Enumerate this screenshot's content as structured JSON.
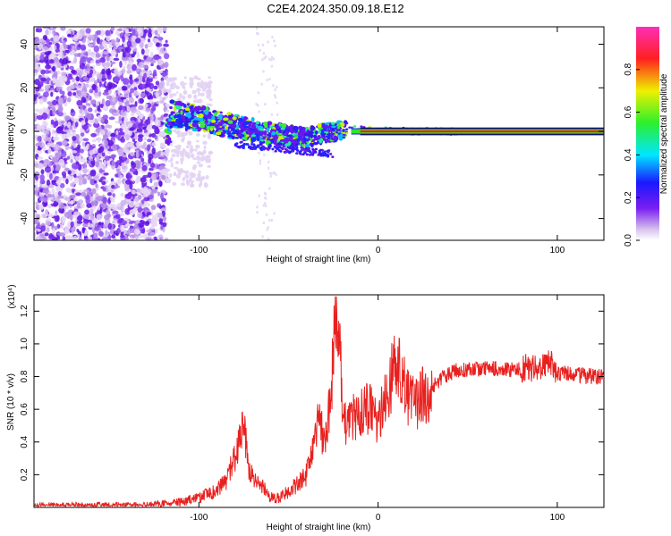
{
  "page": {
    "title": "C2E4.2024.350.09.18.E12"
  },
  "chart_data": [
    {
      "type": "heatmap",
      "title": "",
      "xlabel": "Height of straight line (km)",
      "ylabel": "Frequency (Hz)",
      "xlim": [
        -192,
        126
      ],
      "ylim": [
        -50,
        48
      ],
      "x_ticks": [
        -100,
        0,
        100
      ],
      "y_ticks": [
        -40,
        -20,
        0,
        20,
        40
      ],
      "grid": false,
      "colorbar": {
        "label": "Normalized spectral amplitude",
        "range": [
          0,
          1
        ],
        "ticks": [
          "0.0",
          "0.2",
          "0.4",
          "0.6",
          "0.8"
        ]
      },
      "features": {
        "noise_region_x": [
          -192,
          -118
        ],
        "ridge": [
          {
            "x": -116,
            "y": 8
          },
          {
            "x": -100,
            "y": 6
          },
          {
            "x": -80,
            "y": 2
          },
          {
            "x": -60,
            "y": -1
          },
          {
            "x": -40,
            "y": -3
          },
          {
            "x": -25,
            "y": 0
          },
          {
            "x": -10,
            "y": 1
          },
          {
            "x": 0,
            "y": 0.5
          },
          {
            "x": 20,
            "y": 0
          },
          {
            "x": 126,
            "y": 0
          }
        ]
      }
    },
    {
      "type": "line",
      "title": "",
      "xlabel": "Height of straight line (km)",
      "ylabel": "SNR (10 * v/v)",
      "y_multiplier": "(x10⁴)",
      "xlim": [
        -192,
        126
      ],
      "ylim": [
        0,
        1.3
      ],
      "x_ticks": [
        -100,
        0,
        100
      ],
      "y_ticks": [
        "0.2",
        "0.4",
        "0.6",
        "0.8",
        "1.0",
        "1.2"
      ],
      "grid": false,
      "series": [
        {
          "color": "#e8201e",
          "x": [
            -192,
            -170,
            -150,
            -130,
            -110,
            -100,
            -90,
            -85,
            -80,
            -77,
            -75,
            -72,
            -68,
            -64,
            -60,
            -55,
            -50,
            -45,
            -40,
            -36,
            -33,
            -30,
            -27,
            -24,
            -22,
            -20,
            -18,
            -16,
            -14,
            -12,
            -10,
            -8,
            -5,
            -2,
            0,
            5,
            10,
            15,
            20,
            25,
            30,
            35,
            40,
            45,
            50,
            60,
            70,
            80,
            85,
            90,
            95,
            100,
            110,
            120,
            126
          ],
          "y": [
            0.01,
            0.01,
            0.01,
            0.01,
            0.03,
            0.06,
            0.1,
            0.16,
            0.3,
            0.42,
            0.5,
            0.22,
            0.15,
            0.12,
            0.06,
            0.06,
            0.1,
            0.14,
            0.2,
            0.35,
            0.55,
            0.4,
            0.6,
            1.1,
            1.28,
            0.55,
            0.5,
            0.52,
            0.55,
            0.52,
            0.58,
            0.6,
            0.62,
            0.55,
            0.5,
            0.7,
            0.9,
            0.72,
            0.62,
            0.68,
            0.74,
            0.79,
            0.82,
            0.84,
            0.85,
            0.85,
            0.85,
            0.84,
            0.86,
            0.83,
            0.9,
            0.82,
            0.81,
            0.8,
            0.8
          ]
        }
      ]
    }
  ]
}
